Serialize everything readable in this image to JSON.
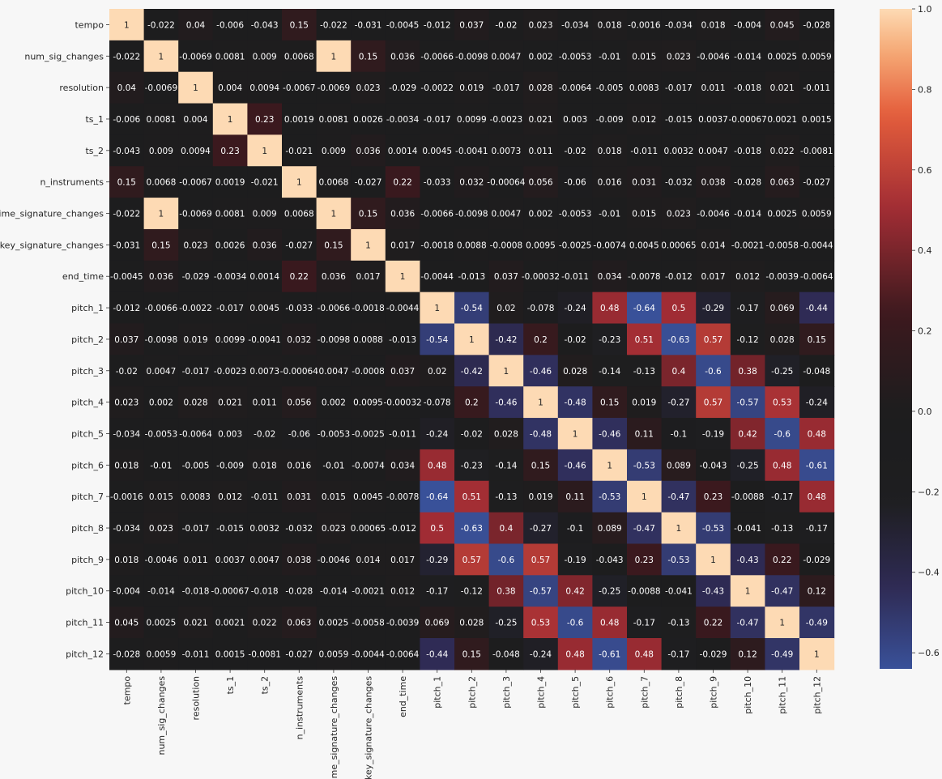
{
  "chart_data": {
    "type": "heatmap",
    "title": "",
    "xlabel": "",
    "ylabel": "",
    "labels": [
      "tempo",
      "num_sig_changes",
      "resolution",
      "ts_1",
      "ts_2",
      "n_instruments",
      "time_signature_changes",
      "key_signature_changes",
      "end_time",
      "pitch_1",
      "pitch_2",
      "pitch_3",
      "pitch_4",
      "pitch_5",
      "pitch_6",
      "pitch_7",
      "pitch_8",
      "pitch_9",
      "pitch_10",
      "pitch_11",
      "pitch_12"
    ],
    "cells": [
      [
        "1",
        "-0.022",
        "0.04",
        "-0.006",
        "-0.043",
        "0.15",
        "-0.022",
        "-0.031",
        "-0.0045",
        "-0.012",
        "0.037",
        "-0.02",
        "0.023",
        "-0.034",
        "0.018",
        "-0.0016",
        "-0.034",
        "0.018",
        "-0.004",
        "0.045",
        "-0.028"
      ],
      [
        "-0.022",
        "1",
        "-0.0069",
        "0.0081",
        "0.009",
        "0.0068",
        "1",
        "0.15",
        "0.036",
        "-0.0066",
        "-0.0098",
        "0.0047",
        "0.002",
        "-0.0053",
        "-0.01",
        "0.015",
        "0.023",
        "-0.0046",
        "-0.014",
        "0.0025",
        "0.0059"
      ],
      [
        "0.04",
        "-0.0069",
        "1",
        "0.004",
        "0.0094",
        "-0.0067",
        "-0.0069",
        "0.023",
        "-0.029",
        "-0.0022",
        "0.019",
        "-0.017",
        "0.028",
        "-0.0064",
        "-0.005",
        "0.0083",
        "-0.017",
        "0.011",
        "-0.018",
        "0.021",
        "-0.011"
      ],
      [
        "-0.006",
        "0.0081",
        "0.004",
        "1",
        "0.23",
        "0.0019",
        "0.0081",
        "0.0026",
        "-0.0034",
        "-0.017",
        "0.0099",
        "-0.0023",
        "0.021",
        "0.003",
        "-0.009",
        "0.012",
        "-0.015",
        "0.0037",
        "-0.00067",
        "0.0021",
        "0.0015"
      ],
      [
        "-0.043",
        "0.009",
        "0.0094",
        "0.23",
        "1",
        "-0.021",
        "0.009",
        "0.036",
        "0.0014",
        "0.0045",
        "-0.0041",
        "0.0073",
        "0.011",
        "-0.02",
        "0.018",
        "-0.011",
        "0.0032",
        "0.0047",
        "-0.018",
        "0.022",
        "-0.0081"
      ],
      [
        "0.15",
        "0.0068",
        "-0.0067",
        "0.0019",
        "-0.021",
        "1",
        "0.0068",
        "-0.027",
        "0.22",
        "-0.033",
        "0.032",
        "-0.00064",
        "0.056",
        "-0.06",
        "0.016",
        "0.031",
        "-0.032",
        "0.038",
        "-0.028",
        "0.063",
        "-0.027"
      ],
      [
        "-0.022",
        "1",
        "-0.0069",
        "0.0081",
        "0.009",
        "0.0068",
        "1",
        "0.15",
        "0.036",
        "-0.0066",
        "-0.0098",
        "0.0047",
        "0.002",
        "-0.0053",
        "-0.01",
        "0.015",
        "0.023",
        "-0.0046",
        "-0.014",
        "0.0025",
        "0.0059"
      ],
      [
        "-0.031",
        "0.15",
        "0.023",
        "0.0026",
        "0.036",
        "-0.027",
        "0.15",
        "1",
        "0.017",
        "-0.0018",
        "0.0088",
        "-0.0008",
        "0.0095",
        "-0.0025",
        "-0.0074",
        "0.0045",
        "0.00065",
        "0.014",
        "-0.0021",
        "-0.0058",
        "-0.0044"
      ],
      [
        "-0.0045",
        "0.036",
        "-0.029",
        "-0.0034",
        "0.0014",
        "0.22",
        "0.036",
        "0.017",
        "1",
        "-0.0044",
        "-0.013",
        "0.037",
        "-0.00032",
        "-0.011",
        "0.034",
        "-0.0078",
        "-0.012",
        "0.017",
        "0.012",
        "-0.0039",
        "-0.0064"
      ],
      [
        "-0.012",
        "-0.0066",
        "-0.0022",
        "-0.017",
        "0.0045",
        "-0.033",
        "-0.0066",
        "-0.0018",
        "-0.0044",
        "1",
        "-0.54",
        "0.02",
        "-0.078",
        "-0.24",
        "0.48",
        "-0.64",
        "0.5",
        "-0.29",
        "-0.17",
        "0.069",
        "-0.44"
      ],
      [
        "0.037",
        "-0.0098",
        "0.019",
        "0.0099",
        "-0.0041",
        "0.032",
        "-0.0098",
        "0.0088",
        "-0.013",
        "-0.54",
        "1",
        "-0.42",
        "0.2",
        "-0.02",
        "-0.23",
        "0.51",
        "-0.63",
        "0.57",
        "-0.12",
        "0.028",
        "0.15"
      ],
      [
        "-0.02",
        "0.0047",
        "-0.017",
        "-0.0023",
        "0.0073",
        "-0.00064",
        "0.0047",
        "-0.0008",
        "0.037",
        "0.02",
        "-0.42",
        "1",
        "-0.46",
        "0.028",
        "-0.14",
        "-0.13",
        "0.4",
        "-0.6",
        "0.38",
        "-0.25",
        "-0.048"
      ],
      [
        "0.023",
        "0.002",
        "0.028",
        "0.021",
        "0.011",
        "0.056",
        "0.002",
        "0.0095",
        "-0.00032",
        "-0.078",
        "0.2",
        "-0.46",
        "1",
        "-0.48",
        "0.15",
        "0.019",
        "-0.27",
        "0.57",
        "-0.57",
        "0.53",
        "-0.24"
      ],
      [
        "-0.034",
        "-0.0053",
        "-0.0064",
        "0.003",
        "-0.02",
        "-0.06",
        "-0.0053",
        "-0.0025",
        "-0.011",
        "-0.24",
        "-0.02",
        "0.028",
        "-0.48",
        "1",
        "-0.46",
        "0.11",
        "-0.1",
        "-0.19",
        "0.42",
        "-0.6",
        "0.48"
      ],
      [
        "0.018",
        "-0.01",
        "-0.005",
        "-0.009",
        "0.018",
        "0.016",
        "-0.01",
        "-0.0074",
        "0.034",
        "0.48",
        "-0.23",
        "-0.14",
        "0.15",
        "-0.46",
        "1",
        "-0.53",
        "0.089",
        "-0.043",
        "-0.25",
        "0.48",
        "-0.61"
      ],
      [
        "-0.0016",
        "0.015",
        "0.0083",
        "0.012",
        "-0.011",
        "0.031",
        "0.015",
        "0.0045",
        "-0.0078",
        "-0.64",
        "0.51",
        "-0.13",
        "0.019",
        "0.11",
        "-0.53",
        "1",
        "-0.47",
        "0.23",
        "-0.0088",
        "-0.17",
        "0.48"
      ],
      [
        "-0.034",
        "0.023",
        "-0.017",
        "-0.015",
        "0.0032",
        "-0.032",
        "0.023",
        "0.00065",
        "-0.012",
        "0.5",
        "-0.63",
        "0.4",
        "-0.27",
        "-0.1",
        "0.089",
        "-0.47",
        "1",
        "-0.53",
        "-0.041",
        "-0.13",
        "-0.17"
      ],
      [
        "0.018",
        "-0.0046",
        "0.011",
        "0.0037",
        "0.0047",
        "0.038",
        "-0.0046",
        "0.014",
        "0.017",
        "-0.29",
        "0.57",
        "-0.6",
        "0.57",
        "-0.19",
        "-0.043",
        "0.23",
        "-0.53",
        "1",
        "-0.43",
        "0.22",
        "-0.029"
      ],
      [
        "-0.004",
        "-0.014",
        "-0.018",
        "-0.00067",
        "-0.018",
        "-0.028",
        "-0.014",
        "-0.0021",
        "0.012",
        "-0.17",
        "-0.12",
        "0.38",
        "-0.57",
        "0.42",
        "-0.25",
        "-0.0088",
        "-0.041",
        "-0.43",
        "1",
        "-0.47",
        "0.12"
      ],
      [
        "0.045",
        "0.0025",
        "0.021",
        "0.0021",
        "0.022",
        "0.063",
        "0.0025",
        "-0.0058",
        "-0.0039",
        "0.069",
        "0.028",
        "-0.25",
        "0.53",
        "-0.6",
        "0.48",
        "-0.17",
        "-0.13",
        "0.22",
        "-0.47",
        "1",
        "-0.49"
      ],
      [
        "-0.028",
        "0.0059",
        "-0.011",
        "0.0015",
        "-0.0081",
        "-0.027",
        "0.0059",
        "-0.0044",
        "-0.0064",
        "-0.44",
        "0.15",
        "-0.048",
        "-0.24",
        "0.48",
        "-0.61",
        "0.48",
        "-0.17",
        "-0.029",
        "0.12",
        "-0.49",
        "1"
      ]
    ],
    "vmin": -0.64,
    "vmax": 1.0,
    "center": 0,
    "colormap": "icefire",
    "colorbar": {
      "ticks": [
        1.0,
        0.8,
        0.6,
        0.4,
        0.2,
        0.0,
        -0.2,
        -0.4,
        -0.6
      ],
      "tick_labels": [
        "1.0",
        "0.8",
        "0.6",
        "0.4",
        "0.2",
        "0.0",
        "−0.2",
        "−0.4",
        "−0.6"
      ]
    },
    "grid": false,
    "legend": "colorbar-right"
  }
}
